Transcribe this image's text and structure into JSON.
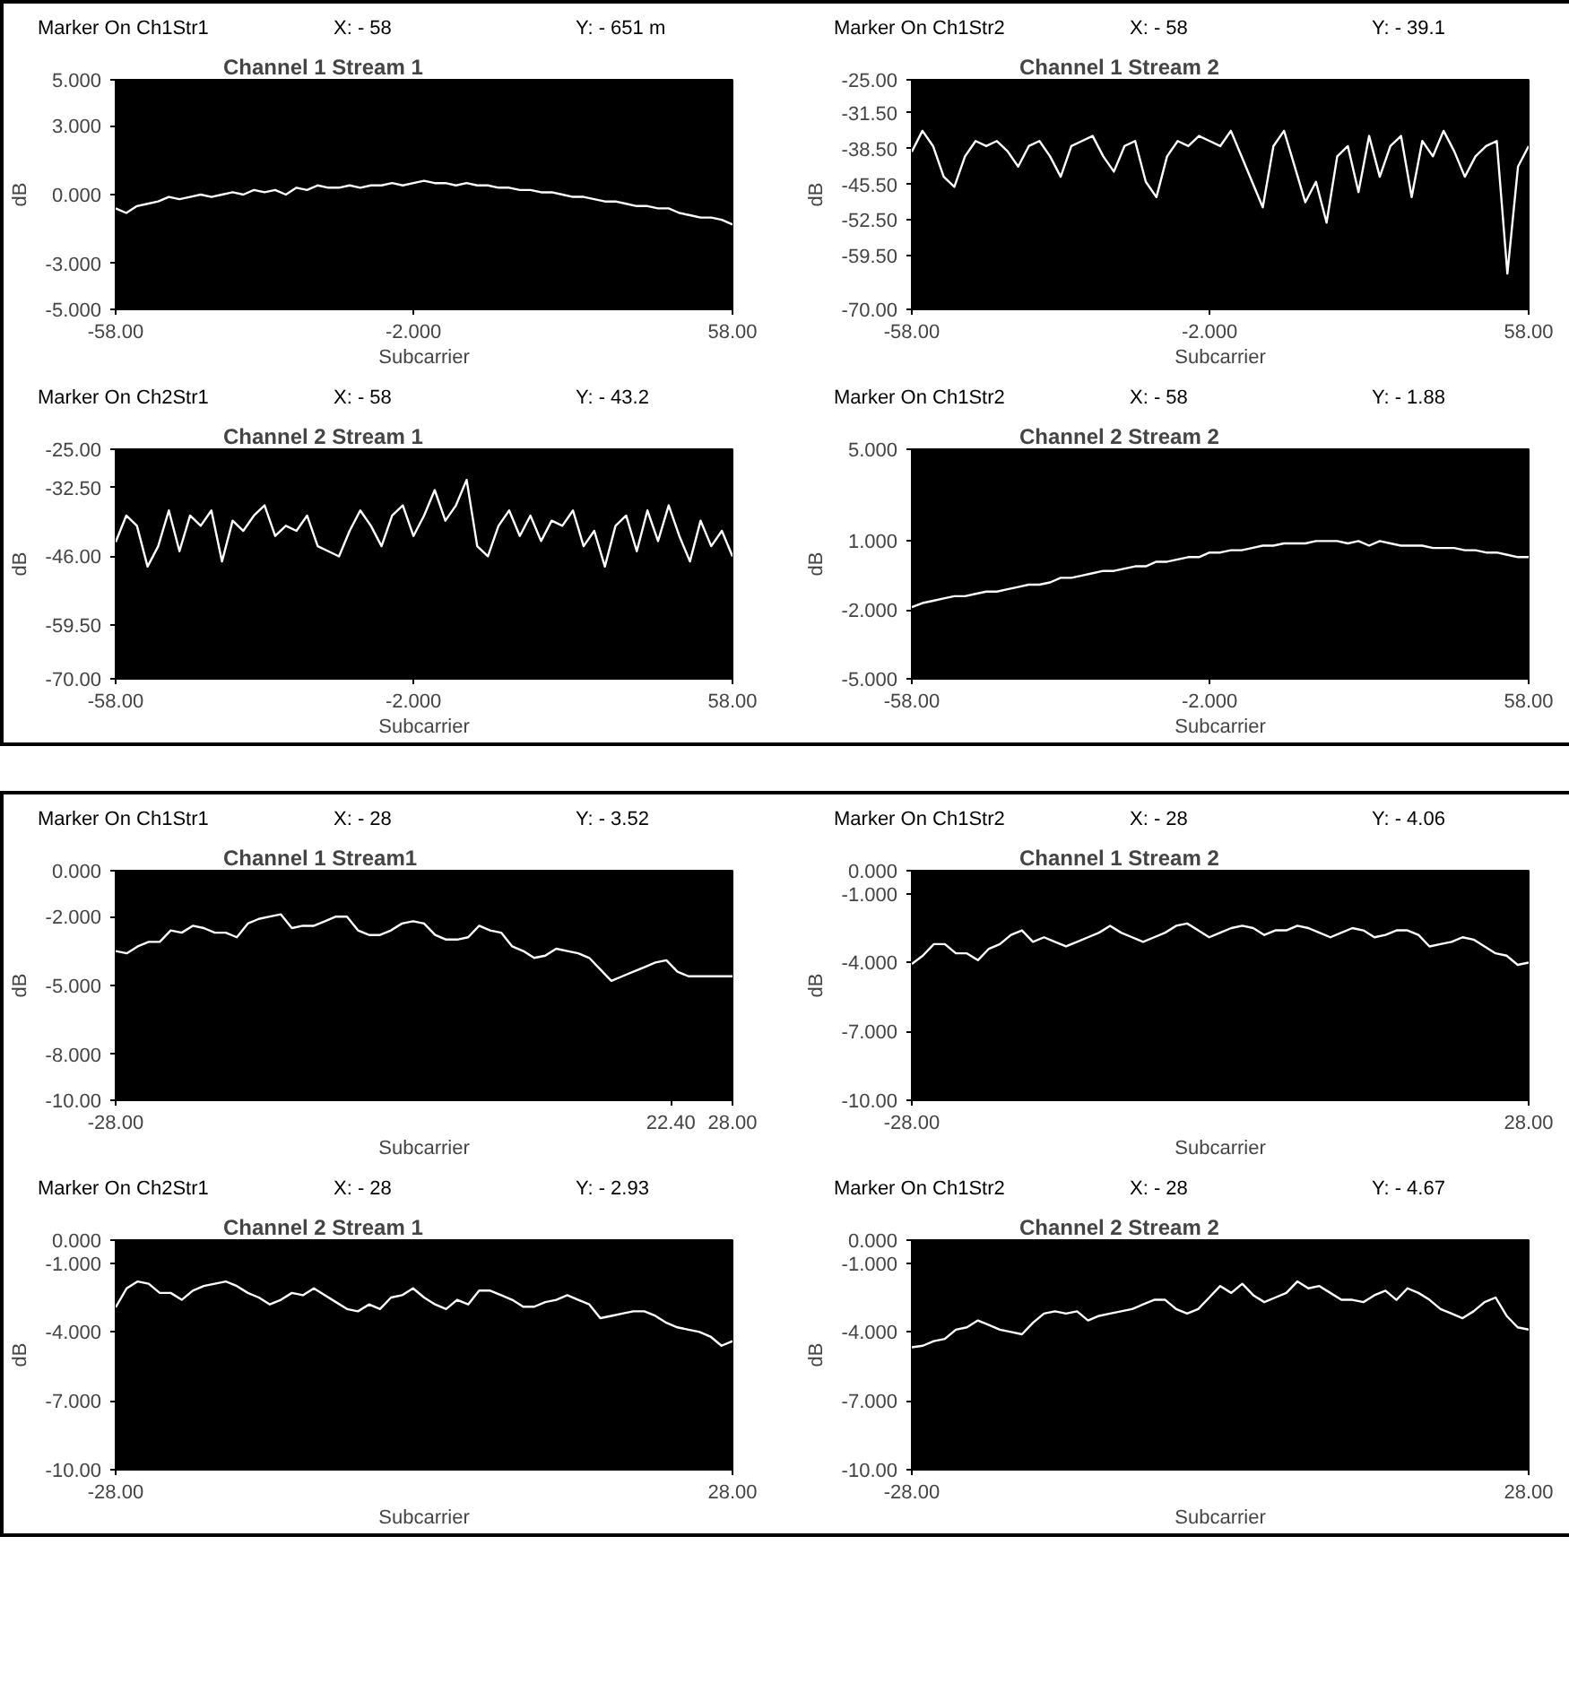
{
  "chart_data": [
    {
      "type": "line",
      "title": "Channel 1 Stream 1",
      "xlabel": "Subcarrier",
      "ylabel": "dB",
      "annotations": [
        "Marker On Ch1Str1",
        "X: - 58",
        "Y: - 651 m"
      ],
      "xlim": [
        -58,
        58
      ],
      "ylim": [
        -5,
        5
      ],
      "xticks": [
        {
          "value": -58,
          "label": "-58.00"
        },
        {
          "value": -2,
          "label": "-2.000"
        },
        {
          "value": 58,
          "label": "58.00"
        }
      ],
      "yticks": [
        {
          "value": 5,
          "label": "5.000"
        },
        {
          "value": 3,
          "label": "3.000"
        },
        {
          "value": 0,
          "label": "0.000"
        },
        {
          "value": -3,
          "label": "-3.000"
        },
        {
          "value": -5,
          "label": "-5.000"
        }
      ],
      "x": [
        -58,
        -56,
        -54,
        -52,
        -50,
        -48,
        -46,
        -44,
        -42,
        -40,
        -38,
        -36,
        -34,
        -32,
        -30,
        -28,
        -26,
        -24,
        -22,
        -20,
        -18,
        -16,
        -14,
        -12,
        -10,
        -8,
        -6,
        -4,
        -2,
        0,
        2,
        4,
        6,
        8,
        10,
        12,
        14,
        16,
        18,
        20,
        22,
        24,
        26,
        28,
        30,
        32,
        34,
        36,
        38,
        40,
        42,
        44,
        46,
        48,
        50,
        52,
        54,
        56,
        58
      ],
      "series": [
        {
          "color": "#ffffff",
          "values": [
            -0.6,
            -0.8,
            -0.5,
            -0.4,
            -0.3,
            -0.1,
            -0.2,
            -0.1,
            0.0,
            -0.1,
            0.0,
            0.1,
            0.0,
            0.2,
            0.1,
            0.2,
            0.0,
            0.3,
            0.2,
            0.4,
            0.3,
            0.3,
            0.4,
            0.3,
            0.4,
            0.4,
            0.5,
            0.4,
            0.5,
            0.6,
            0.5,
            0.5,
            0.4,
            0.5,
            0.4,
            0.4,
            0.3,
            0.3,
            0.2,
            0.2,
            0.1,
            0.1,
            0.0,
            -0.1,
            -0.1,
            -0.2,
            -0.3,
            -0.3,
            -0.4,
            -0.5,
            -0.5,
            -0.6,
            -0.6,
            -0.8,
            -0.9,
            -1.0,
            -1.0,
            -1.1,
            -1.3
          ]
        }
      ]
    },
    {
      "type": "line",
      "title": "Channel 1 Stream 2",
      "xlabel": "Subcarrier",
      "ylabel": "dB",
      "annotations": [
        "Marker On Ch1Str2",
        "X: - 58",
        "Y: - 39.1"
      ],
      "xlim": [
        -58,
        58
      ],
      "ylim": [
        -70,
        -25
      ],
      "xticks": [
        {
          "value": -58,
          "label": "-58.00"
        },
        {
          "value": -2,
          "label": "-2.000"
        },
        {
          "value": 58,
          "label": "58.00"
        }
      ],
      "yticks": [
        {
          "value": -25,
          "label": "-25.00"
        },
        {
          "value": -31.5,
          "label": "-31.50"
        },
        {
          "value": -38.5,
          "label": "-38.50"
        },
        {
          "value": -45.5,
          "label": "-45.50"
        },
        {
          "value": -52.5,
          "label": "-52.50"
        },
        {
          "value": -59.5,
          "label": "-59.50"
        },
        {
          "value": -70,
          "label": "-70.00"
        }
      ],
      "x": [
        -58,
        -56,
        -54,
        -52,
        -50,
        -48,
        -46,
        -44,
        -42,
        -40,
        -38,
        -36,
        -34,
        -32,
        -30,
        -28,
        -26,
        -24,
        -22,
        -20,
        -18,
        -16,
        -14,
        -12,
        -10,
        -8,
        -6,
        -4,
        -2,
        0,
        2,
        4,
        6,
        8,
        10,
        12,
        14,
        16,
        18,
        20,
        22,
        24,
        26,
        28,
        30,
        32,
        34,
        36,
        38,
        40,
        42,
        44,
        46,
        48,
        50,
        52,
        54,
        56,
        58
      ],
      "series": [
        {
          "color": "#ffffff",
          "values": [
            -39.1,
            -35,
            -38,
            -44,
            -46,
            -40,
            -37,
            -38,
            -37,
            -39,
            -42,
            -38,
            -37,
            -40,
            -44,
            -38,
            -37,
            -36,
            -40,
            -43,
            -38,
            -37,
            -45,
            -48,
            -40,
            -37,
            -38,
            -36,
            -37,
            -38,
            -35,
            -40,
            -45,
            -50,
            -38,
            -35,
            -42,
            -49,
            -45,
            -53,
            -40,
            -38,
            -47,
            -36,
            -44,
            -38,
            -36,
            -48,
            -37,
            -40,
            -35,
            -39,
            -44,
            -40,
            -38,
            -37,
            -63,
            -42,
            -38
          ]
        }
      ]
    },
    {
      "type": "line",
      "title": "Channel 2 Stream 1",
      "xlabel": "Subcarrier",
      "ylabel": "dB",
      "annotations": [
        "Marker On Ch2Str1",
        "X: - 58",
        "Y: - 43.2"
      ],
      "xlim": [
        -58,
        58
      ],
      "ylim": [
        -70,
        -25
      ],
      "xticks": [
        {
          "value": -58,
          "label": "-58.00"
        },
        {
          "value": -2,
          "label": "-2.000"
        },
        {
          "value": 58,
          "label": "58.00"
        }
      ],
      "yticks": [
        {
          "value": -25,
          "label": "-25.00"
        },
        {
          "value": -32.5,
          "label": "-32.50"
        },
        {
          "value": -46,
          "label": "-46.00"
        },
        {
          "value": -59.5,
          "label": "-59.50"
        },
        {
          "value": -70,
          "label": "-70.00"
        }
      ],
      "x": [
        -58,
        -56,
        -54,
        -52,
        -50,
        -48,
        -46,
        -44,
        -42,
        -40,
        -38,
        -36,
        -34,
        -32,
        -30,
        -28,
        -26,
        -24,
        -22,
        -20,
        -18,
        -16,
        -14,
        -12,
        -10,
        -8,
        -6,
        -4,
        -2,
        0,
        2,
        4,
        6,
        8,
        10,
        12,
        14,
        16,
        18,
        20,
        22,
        24,
        26,
        28,
        30,
        32,
        34,
        36,
        38,
        40,
        42,
        44,
        46,
        48,
        50,
        52,
        54,
        56,
        58
      ],
      "series": [
        {
          "color": "#ffffff",
          "values": [
            -43.2,
            -38,
            -40,
            -48,
            -44,
            -37,
            -45,
            -38,
            -40,
            -37,
            -47,
            -39,
            -41,
            -38,
            -36,
            -42,
            -40,
            -41,
            -38,
            -44,
            -45,
            -46,
            -41,
            -37,
            -40,
            -44,
            -38,
            -36,
            -42,
            -38,
            -33,
            -39,
            -36,
            -31,
            -44,
            -46,
            -40,
            -37,
            -42,
            -38,
            -43,
            -39,
            -40,
            -37,
            -44,
            -41,
            -48,
            -40,
            -38,
            -45,
            -37,
            -43,
            -36,
            -42,
            -47,
            -39,
            -44,
            -41,
            -46
          ]
        }
      ]
    },
    {
      "type": "line",
      "title": "Channel 2 Stream 2",
      "xlabel": "Subcarrier",
      "ylabel": "dB",
      "annotations": [
        "Marker On Ch1Str2",
        "X: - 58",
        "Y: - 1.88"
      ],
      "xlim": [
        -58,
        58
      ],
      "ylim": [
        -5,
        5
      ],
      "xticks": [
        {
          "value": -58,
          "label": "-58.00"
        },
        {
          "value": -2,
          "label": "-2.000"
        },
        {
          "value": 58,
          "label": "58.00"
        }
      ],
      "yticks": [
        {
          "value": 5,
          "label": "5.000"
        },
        {
          "value": 1,
          "label": "1.000"
        },
        {
          "value": -2,
          "label": "-2.000"
        },
        {
          "value": -5,
          "label": "-5.000"
        }
      ],
      "x": [
        -58,
        -56,
        -54,
        -52,
        -50,
        -48,
        -46,
        -44,
        -42,
        -40,
        -38,
        -36,
        -34,
        -32,
        -30,
        -28,
        -26,
        -24,
        -22,
        -20,
        -18,
        -16,
        -14,
        -12,
        -10,
        -8,
        -6,
        -4,
        -2,
        0,
        2,
        4,
        6,
        8,
        10,
        12,
        14,
        16,
        18,
        20,
        22,
        24,
        26,
        28,
        30,
        32,
        34,
        36,
        38,
        40,
        42,
        44,
        46,
        48,
        50,
        52,
        54,
        56,
        58
      ],
      "series": [
        {
          "color": "#ffffff",
          "values": [
            -1.88,
            -1.7,
            -1.6,
            -1.5,
            -1.4,
            -1.4,
            -1.3,
            -1.2,
            -1.2,
            -1.1,
            -1.0,
            -0.9,
            -0.9,
            -0.8,
            -0.6,
            -0.6,
            -0.5,
            -0.4,
            -0.3,
            -0.3,
            -0.2,
            -0.1,
            -0.1,
            0.1,
            0.1,
            0.2,
            0.3,
            0.3,
            0.5,
            0.5,
            0.6,
            0.6,
            0.7,
            0.8,
            0.8,
            0.9,
            0.9,
            0.9,
            1.0,
            1.0,
            1.0,
            0.9,
            1.0,
            0.8,
            1.0,
            0.9,
            0.8,
            0.8,
            0.8,
            0.7,
            0.7,
            0.7,
            0.6,
            0.6,
            0.5,
            0.5,
            0.4,
            0.3,
            0.3
          ]
        }
      ]
    },
    {
      "type": "line",
      "title": "Channel 1 Stream1",
      "xlabel": "Subcarrier",
      "ylabel": "dB",
      "annotations": [
        "Marker On Ch1Str1",
        "X: - 28",
        "Y: - 3.52"
      ],
      "xlim": [
        -28,
        28
      ],
      "ylim": [
        -10,
        0
      ],
      "xticks": [
        {
          "value": -28,
          "label": "-28.00"
        },
        {
          "value": 22.4,
          "label": "22.40"
        },
        {
          "value": 28,
          "label": "28.00"
        }
      ],
      "yticks": [
        {
          "value": 0,
          "label": "0.000"
        },
        {
          "value": -2,
          "label": "-2.000"
        },
        {
          "value": -5,
          "label": "-5.000"
        },
        {
          "value": -8,
          "label": "-8.000"
        },
        {
          "value": -10,
          "label": "-10.00"
        }
      ],
      "x": [
        -28,
        -27,
        -26,
        -25,
        -24,
        -23,
        -22,
        -21,
        -20,
        -19,
        -18,
        -17,
        -16,
        -15,
        -14,
        -13,
        -12,
        -11,
        -10,
        -9,
        -8,
        -7,
        -6,
        -5,
        -4,
        -3,
        -2,
        -1,
        0,
        1,
        2,
        3,
        4,
        5,
        6,
        7,
        8,
        9,
        10,
        11,
        12,
        13,
        14,
        15,
        16,
        17,
        18,
        19,
        20,
        21,
        22,
        23,
        24,
        25,
        26,
        27,
        28
      ],
      "series": [
        {
          "color": "#ffffff",
          "values": [
            -3.5,
            -3.6,
            -3.3,
            -3.1,
            -3.1,
            -2.6,
            -2.7,
            -2.4,
            -2.5,
            -2.7,
            -2.7,
            -2.9,
            -2.3,
            -2.1,
            -2.0,
            -1.9,
            -2.5,
            -2.4,
            -2.4,
            -2.2,
            -2.0,
            -2.0,
            -2.6,
            -2.8,
            -2.8,
            -2.6,
            -2.3,
            -2.2,
            -2.3,
            -2.8,
            -3.0,
            -3.0,
            -2.9,
            -2.4,
            -2.6,
            -2.7,
            -3.3,
            -3.5,
            -3.8,
            -3.7,
            -3.4,
            -3.5,
            -3.6,
            -3.8,
            -4.3,
            -4.8,
            -4.6,
            -4.4,
            -4.2,
            -4.0,
            -3.9,
            -4.4,
            -4.6,
            -4.6,
            -4.6,
            -4.6,
            -4.6
          ]
        }
      ]
    },
    {
      "type": "line",
      "title": "Channel 1 Stream 2",
      "xlabel": "Subcarrier",
      "ylabel": "dB",
      "annotations": [
        "Marker On Ch1Str2",
        "X: - 28",
        "Y: - 4.06"
      ],
      "xlim": [
        -28,
        28
      ],
      "ylim": [
        -10,
        0
      ],
      "xticks": [
        {
          "value": -28,
          "label": "-28.00"
        },
        {
          "value": 28,
          "label": "28.00"
        }
      ],
      "yticks": [
        {
          "value": 0,
          "label": "0.000"
        },
        {
          "value": -1,
          "label": "-1.000"
        },
        {
          "value": -4,
          "label": "-4.000"
        },
        {
          "value": -7,
          "label": "-7.000"
        },
        {
          "value": -10,
          "label": "-10.00"
        }
      ],
      "x": [
        -28,
        -27,
        -26,
        -25,
        -24,
        -23,
        -22,
        -21,
        -20,
        -19,
        -18,
        -17,
        -16,
        -15,
        -14,
        -13,
        -12,
        -11,
        -10,
        -9,
        -8,
        -7,
        -6,
        -5,
        -4,
        -3,
        -2,
        -1,
        0,
        1,
        2,
        3,
        4,
        5,
        6,
        7,
        8,
        9,
        10,
        11,
        12,
        13,
        14,
        15,
        16,
        17,
        18,
        19,
        20,
        21,
        22,
        23,
        24,
        25,
        26,
        27,
        28
      ],
      "series": [
        {
          "color": "#ffffff",
          "values": [
            -4.06,
            -3.7,
            -3.2,
            -3.2,
            -3.6,
            -3.6,
            -3.9,
            -3.4,
            -3.2,
            -2.8,
            -2.6,
            -3.1,
            -2.9,
            -3.1,
            -3.3,
            -3.1,
            -2.9,
            -2.7,
            -2.4,
            -2.7,
            -2.9,
            -3.1,
            -2.9,
            -2.7,
            -2.4,
            -2.3,
            -2.6,
            -2.9,
            -2.7,
            -2.5,
            -2.4,
            -2.5,
            -2.8,
            -2.6,
            -2.6,
            -2.4,
            -2.5,
            -2.7,
            -2.9,
            -2.7,
            -2.5,
            -2.6,
            -2.9,
            -2.8,
            -2.6,
            -2.6,
            -2.8,
            -3.3,
            -3.2,
            -3.1,
            -2.9,
            -3.0,
            -3.3,
            -3.6,
            -3.7,
            -4.1,
            -4.0
          ]
        }
      ]
    },
    {
      "type": "line",
      "title": "Channel 2 Stream 1",
      "xlabel": "Subcarrier",
      "ylabel": "dB",
      "annotations": [
        "Marker On Ch2Str1",
        "X: - 28",
        "Y: - 2.93"
      ],
      "xlim": [
        -28,
        28
      ],
      "ylim": [
        -10,
        0
      ],
      "xticks": [
        {
          "value": -28,
          "label": "-28.00"
        },
        {
          "value": 28,
          "label": "28.00"
        }
      ],
      "yticks": [
        {
          "value": 0,
          "label": "0.000"
        },
        {
          "value": -1,
          "label": "-1.000"
        },
        {
          "value": -4,
          "label": "-4.000"
        },
        {
          "value": -7,
          "label": "-7.000"
        },
        {
          "value": -10,
          "label": "-10.00"
        }
      ],
      "x": [
        -28,
        -27,
        -26,
        -25,
        -24,
        -23,
        -22,
        -21,
        -20,
        -19,
        -18,
        -17,
        -16,
        -15,
        -14,
        -13,
        -12,
        -11,
        -10,
        -9,
        -8,
        -7,
        -6,
        -5,
        -4,
        -3,
        -2,
        -1,
        0,
        1,
        2,
        3,
        4,
        5,
        6,
        7,
        8,
        9,
        10,
        11,
        12,
        13,
        14,
        15,
        16,
        17,
        18,
        19,
        20,
        21,
        22,
        23,
        24,
        25,
        26,
        27,
        28
      ],
      "series": [
        {
          "color": "#ffffff",
          "values": [
            -2.93,
            -2.1,
            -1.8,
            -1.9,
            -2.3,
            -2.3,
            -2.6,
            -2.2,
            -2.0,
            -1.9,
            -1.8,
            -2.0,
            -2.3,
            -2.5,
            -2.8,
            -2.6,
            -2.3,
            -2.4,
            -2.1,
            -2.4,
            -2.7,
            -3.0,
            -3.1,
            -2.8,
            -3.0,
            -2.5,
            -2.4,
            -2.1,
            -2.5,
            -2.8,
            -3.0,
            -2.6,
            -2.8,
            -2.2,
            -2.2,
            -2.4,
            -2.6,
            -2.9,
            -2.9,
            -2.7,
            -2.6,
            -2.4,
            -2.6,
            -2.8,
            -3.4,
            -3.3,
            -3.2,
            -3.1,
            -3.1,
            -3.3,
            -3.6,
            -3.8,
            -3.9,
            -4.0,
            -4.2,
            -4.6,
            -4.4
          ]
        }
      ]
    },
    {
      "type": "line",
      "title": "Channel 2 Stream 2",
      "xlabel": "Subcarrier",
      "ylabel": "dB",
      "annotations": [
        "Marker On Ch1Str2",
        "X: - 28",
        "Y: - 4.67"
      ],
      "xlim": [
        -28,
        28
      ],
      "ylim": [
        -10,
        0
      ],
      "xticks": [
        {
          "value": -28,
          "label": "-28.00"
        },
        {
          "value": 28,
          "label": "28.00"
        }
      ],
      "yticks": [
        {
          "value": 0,
          "label": "0.000"
        },
        {
          "value": -1,
          "label": "-1.000"
        },
        {
          "value": -4,
          "label": "-4.000"
        },
        {
          "value": -7,
          "label": "-7.000"
        },
        {
          "value": -10,
          "label": "-10.00"
        }
      ],
      "x": [
        -28,
        -27,
        -26,
        -25,
        -24,
        -23,
        -22,
        -21,
        -20,
        -19,
        -18,
        -17,
        -16,
        -15,
        -14,
        -13,
        -12,
        -11,
        -10,
        -9,
        -8,
        -7,
        -6,
        -5,
        -4,
        -3,
        -2,
        -1,
        0,
        1,
        2,
        3,
        4,
        5,
        6,
        7,
        8,
        9,
        10,
        11,
        12,
        13,
        14,
        15,
        16,
        17,
        18,
        19,
        20,
        21,
        22,
        23,
        24,
        25,
        26,
        27,
        28
      ],
      "series": [
        {
          "color": "#ffffff",
          "values": [
            -4.67,
            -4.6,
            -4.4,
            -4.3,
            -3.9,
            -3.8,
            -3.5,
            -3.7,
            -3.9,
            -4.0,
            -4.1,
            -3.6,
            -3.2,
            -3.1,
            -3.2,
            -3.1,
            -3.5,
            -3.3,
            -3.2,
            -3.1,
            -3.0,
            -2.8,
            -2.6,
            -2.6,
            -3.0,
            -3.2,
            -3.0,
            -2.5,
            -2.0,
            -2.3,
            -1.9,
            -2.4,
            -2.7,
            -2.5,
            -2.3,
            -1.8,
            -2.1,
            -2.0,
            -2.3,
            -2.6,
            -2.6,
            -2.7,
            -2.4,
            -2.2,
            -2.6,
            -2.1,
            -2.3,
            -2.6,
            -3.0,
            -3.2,
            -3.4,
            -3.1,
            -2.7,
            -2.5,
            -3.3,
            -3.8,
            -3.9
          ]
        }
      ]
    }
  ]
}
